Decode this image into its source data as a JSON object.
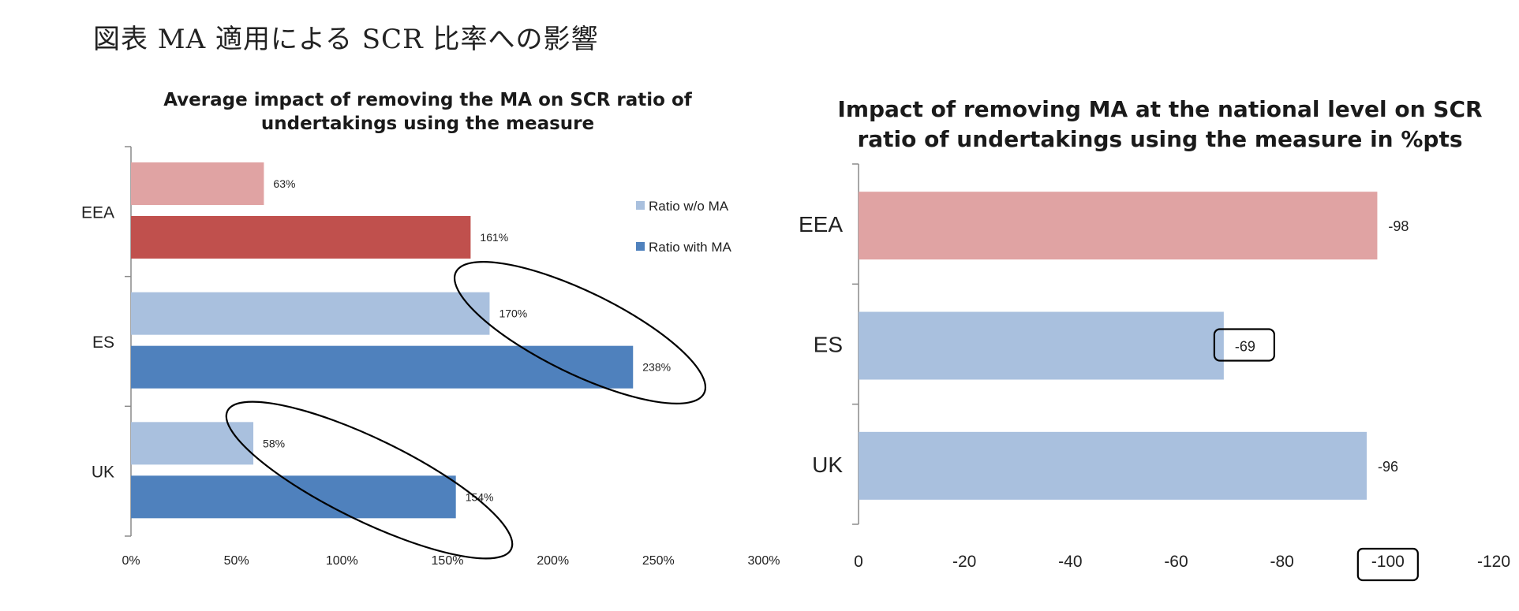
{
  "page_title": "図表 MA 適用による SCR 比率への影響",
  "chart_data": [
    {
      "type": "bar",
      "orientation": "horizontal",
      "title_lines": [
        "Average impact of removing the MA on SCR ratio of",
        "undertakings using the measure"
      ],
      "categories": [
        "EEA",
        "ES",
        "UK"
      ],
      "series": [
        {
          "name": "Ratio w/o MA",
          "values": [
            63,
            170,
            58
          ],
          "labels": [
            "63%",
            "170%",
            "58%"
          ]
        },
        {
          "name": "Ratio with MA",
          "values": [
            161,
            238,
            154
          ],
          "labels": [
            "161%",
            "238%",
            "154%"
          ]
        }
      ],
      "colors": {
        "ratio_wo_ma": "#a9c0de",
        "ratio_with_ma": "#4f81bd",
        "eea_ratio_wo_ma": "#e0a3a3",
        "eea_ratio_with_ma": "#c0504d",
        "annotation": "#000000"
      },
      "xticks": [
        "0%",
        "50%",
        "100%",
        "150%",
        "200%",
        "250%",
        "300%"
      ],
      "xlim": [
        0,
        300
      ],
      "legend_position": "right",
      "annotations": [
        "ellipse around ES 170% and 238% labels",
        "ellipse around UK 58% and 154% labels"
      ]
    },
    {
      "type": "bar",
      "orientation": "horizontal",
      "title_lines": [
        "Impact of removing MA at the national level  on SCR",
        "ratio of undertakings using the measure in %pts"
      ],
      "categories": [
        "EEA",
        "ES",
        "UK"
      ],
      "values": [
        -98,
        -69,
        -96
      ],
      "labels": [
        "-98",
        "-69",
        "-96"
      ],
      "colors": {
        "eea": "#e0a3a3",
        "other": "#a9c0de",
        "annotation": "#000000"
      },
      "xticks": [
        "0",
        "-20",
        "-40",
        "-60",
        "-80",
        "-100",
        "-120"
      ],
      "xlim": [
        0,
        -120
      ],
      "annotations": [
        "box around -69 label",
        "box around -100 tick label"
      ]
    }
  ]
}
